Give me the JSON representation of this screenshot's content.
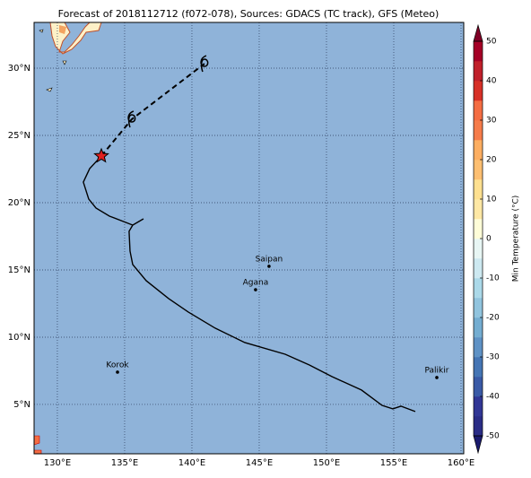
{
  "chart_data": {
    "type": "map",
    "title": "Forecast of 2018112712 (f072-078), Sources: GDACS (TC track), GFS (Meteo)",
    "xlim": [
      128.27,
      160.2
    ],
    "ylim": [
      1.33,
      33.4
    ],
    "xticks": [
      {
        "value": 130,
        "label": "130°E"
      },
      {
        "value": 135,
        "label": "135°E"
      },
      {
        "value": 140,
        "label": "140°E"
      },
      {
        "value": 145,
        "label": "145°E"
      },
      {
        "value": 150,
        "label": "150°E"
      },
      {
        "value": 155,
        "label": "155°E"
      },
      {
        "value": 160,
        "label": "160°E"
      }
    ],
    "yticks": [
      {
        "value": 5,
        "label": "5°N"
      },
      {
        "value": 10,
        "label": "10°N"
      },
      {
        "value": 15,
        "label": "15°N"
      },
      {
        "value": 20,
        "label": "20°N"
      },
      {
        "value": 25,
        "label": "25°N"
      },
      {
        "value": 30,
        "label": "30°N"
      }
    ],
    "grid": true,
    "sea_color": "#8fb3d9",
    "track": {
      "color": "#000000",
      "x": [
        156.6,
        155.53,
        154.93,
        154.13,
        152.6,
        150.4,
        148.73,
        146.93,
        143.93,
        141.73,
        139.73,
        138.27,
        136.6,
        135.6,
        135.4,
        135.33,
        135.6,
        136.4,
        135.6,
        133.87,
        132.87,
        132.33,
        131.93,
        132.4,
        133.27
      ],
      "y": [
        4.47,
        4.87,
        4.67,
        4.93,
        6.07,
        7.07,
        7.93,
        8.73,
        9.6,
        10.67,
        11.87,
        12.87,
        14.2,
        15.4,
        16.4,
        17.87,
        18.33,
        18.8,
        18.33,
        19.0,
        19.6,
        20.27,
        21.53,
        22.53,
        23.47
      ]
    },
    "forecast": {
      "x": [
        133.27,
        135.53,
        140.93
      ],
      "y": [
        23.47,
        26.2,
        30.33
      ]
    },
    "current_position": {
      "x": 133.27,
      "y": 23.47,
      "color": "#e02020"
    },
    "places": [
      {
        "name": "Saipan",
        "x": 145.73,
        "y": 15.27
      },
      {
        "name": "Agana",
        "x": 144.73,
        "y": 13.53
      },
      {
        "name": "Korok",
        "x": 134.47,
        "y": 7.4
      },
      {
        "name": "Palikir",
        "x": 158.2,
        "y": 7.0
      }
    ],
    "colorbar": {
      "label": "Min Temperature (°C)",
      "clim": [
        -50,
        50
      ],
      "ticks": [
        -50,
        -40,
        -30,
        -20,
        -10,
        0,
        10,
        20,
        30,
        40,
        50
      ],
      "colors": [
        "#2a2c86",
        "#313695",
        "#3a5aa6",
        "#4575b4",
        "#5f92c5",
        "#74add1",
        "#91c4de",
        "#abd9e9",
        "#cde9f1",
        "#e8f6f4",
        "#fefdd8",
        "#fee8a5",
        "#fee090",
        "#fdbf71",
        "#fdae61",
        "#f67c4a",
        "#f46d43",
        "#d73027",
        "#c0202a",
        "#a50026"
      ],
      "under_color": "#1a1a6e",
      "over_color": "#800026"
    }
  }
}
